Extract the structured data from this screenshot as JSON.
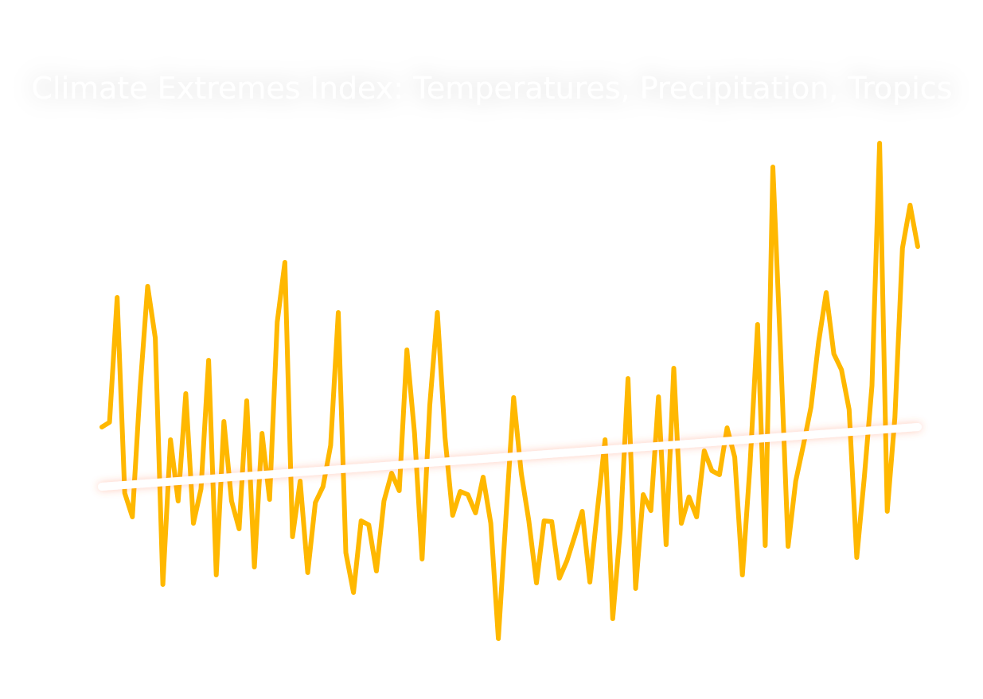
{
  "chart_data": {
    "type": "line",
    "title": "Climate Extremes Index: Temperatures, Precipitation, Tropics",
    "categories": [
      null,
      null,
      null,
      null,
      null,
      null,
      null,
      null,
      null,
      null,
      null,
      null,
      null,
      null,
      null,
      null,
      null,
      null,
      null,
      null,
      null,
      null,
      null,
      null,
      null,
      null,
      null,
      null,
      null,
      null,
      null,
      null,
      null,
      null,
      null,
      null,
      null,
      null,
      null,
      null,
      null,
      null,
      null,
      null,
      null,
      null,
      null,
      null,
      null,
      null,
      null,
      null,
      null,
      null,
      null,
      null,
      null,
      null,
      null,
      null,
      null,
      null,
      null,
      null,
      null,
      null,
      null,
      null,
      null,
      null,
      null,
      null,
      null,
      null,
      null,
      null,
      null,
      null,
      null,
      null,
      null,
      null,
      null,
      null,
      null,
      null,
      null,
      null,
      null,
      null,
      null,
      null,
      null,
      null,
      null,
      null,
      null,
      null,
      null,
      null,
      null,
      null,
      null,
      null,
      null,
      null,
      null,
      null
    ],
    "series": [
      {
        "color": "#ffb800",
        "values": [
          36.3,
          36.9,
          52.6,
          28,
          25,
          41,
          54,
          47.5,
          16.5,
          34.7,
          27,
          40.5,
          24.2,
          28.5,
          44.7,
          17.7,
          37,
          27,
          23.5,
          39.6,
          18.7,
          35.5,
          27.2,
          49.5,
          57,
          22.5,
          29.5,
          18,
          26.8,
          28.8,
          34,
          50.7,
          20.5,
          15.5,
          24.5,
          24,
          18.2,
          27,
          30.5,
          28.3,
          46,
          35.5,
          19.7,
          39,
          50.7,
          35,
          25.2,
          28.2,
          27.8,
          25.5,
          30,
          24.2,
          9.7,
          25,
          40,
          30.5,
          24.5,
          16.7,
          24.5,
          24.4,
          17.3,
          19.5,
          22.5,
          25.7,
          16.8,
          26,
          34.7,
          12.2,
          23.5,
          42.4,
          16,
          27.8,
          25.8,
          40.1,
          21.5,
          43.7,
          24.2,
          27.5,
          25,
          33.3,
          30.8,
          30.3,
          36.2,
          32.5,
          17.7,
          31.5,
          49.2,
          21.4,
          69,
          46,
          21.3,
          29.5,
          34,
          38.8,
          47,
          53.2,
          45.5,
          43.5,
          38.5,
          19.9,
          30,
          41.5,
          72,
          25.7,
          37.5,
          58.8,
          64.2,
          59
        ]
      }
    ],
    "trend": {
      "color": "#ffffff",
      "values": [
        28.8,
        36.3
      ]
    },
    "ylim": [
      2,
      74
    ]
  }
}
